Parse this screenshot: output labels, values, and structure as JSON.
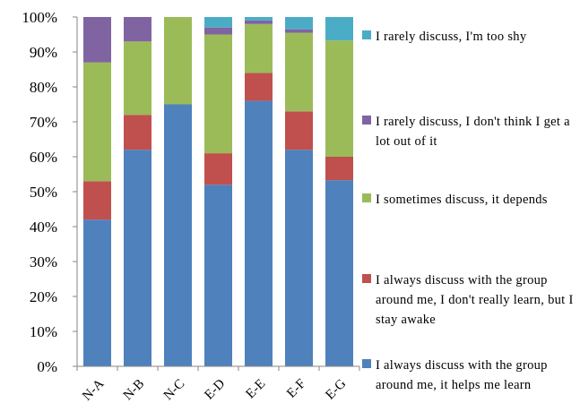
{
  "chart_data": {
    "type": "bar",
    "stacked": true,
    "categories": [
      "N-A",
      "N-B",
      "N-C",
      "E-D",
      "E-E",
      "E-F",
      "E-G"
    ],
    "ylim": [
      0,
      100
    ],
    "yticks": [
      "0%",
      "10%",
      "20%",
      "30%",
      "40%",
      "50%",
      "60%",
      "70%",
      "80%",
      "90%",
      "100%"
    ],
    "grid": false,
    "legend_position": "right",
    "series": [
      {
        "name": "I always discuss with the group around me, it helps me learn",
        "color": "#4f81bd",
        "values": [
          42,
          62,
          75,
          52,
          76,
          62,
          53.3
        ]
      },
      {
        "name": "I always discuss with the group around me, I don't really learn, but I stay awake",
        "color": "#c0504d",
        "values": [
          11,
          10,
          0,
          9,
          8,
          11,
          6.7
        ]
      },
      {
        "name": "I sometimes discuss, it depends",
        "color": "#9bbb59",
        "values": [
          34,
          21,
          25,
          34,
          14,
          22.5,
          33.3
        ]
      },
      {
        "name": "I rarely discuss, I don't think I get a lot out of it",
        "color": "#8064a2",
        "values": [
          13,
          7,
          0,
          2,
          1,
          1,
          0
        ]
      },
      {
        "name": "I rarely discuss, I'm too shy",
        "color": "#4bacc6",
        "values": [
          0,
          0,
          0,
          3,
          1,
          3.5,
          6.7
        ]
      }
    ]
  },
  "legend": [
    {
      "label": "I rarely discuss, I'm too shy",
      "color": "#4bacc6"
    },
    {
      "label": "I rarely discuss, I don't think I get a lot out of it",
      "color": "#8064a2"
    },
    {
      "label": "I sometimes discuss, it depends",
      "color": "#9bbb59"
    },
    {
      "label": "I always discuss with the group around me, I don't really learn, but I stay awake",
      "color": "#c0504d"
    },
    {
      "label": "I always discuss with the group around me, it helps me learn",
      "color": "#4f81bd"
    }
  ]
}
